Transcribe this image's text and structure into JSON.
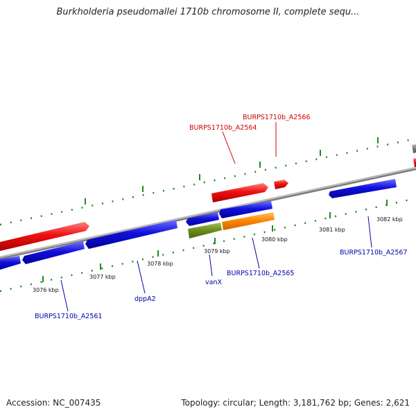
{
  "title": "Burkholderia pseudomallei 1710b chromosome II, complete sequ...",
  "footer": {
    "accession": "Accession: NC_007435",
    "topology": "Topology: circular; Length: 3,181,762 bp; Genes: 2,621"
  },
  "colors": {
    "forward_gene": "#ee1111",
    "reverse_gene": "#1111dd",
    "olive_gene": "#6f8f1f",
    "orange_gene": "#ff8800",
    "other_gene": "#777777",
    "backbone": "#888888",
    "tick": "#228822",
    "label_top": "#cc0000",
    "label_bottom": "#0000aa"
  },
  "ruler": {
    "unit": "kbp",
    "labels": [
      "3076 kbp",
      "3077 kbp",
      "3078 kbp",
      "3079 kbp",
      "3080 kbp",
      "3081 kbp",
      "3082 kbp"
    ]
  },
  "gene_labels": {
    "top": [
      "BURPS1710b_A2566",
      "BURPS1710b_A2564"
    ],
    "bottom": [
      "BURPS1710b_A2561",
      "dppA2",
      "vanX",
      "BURPS1710b_A2565",
      "BURPS1710b_A2567"
    ]
  }
}
